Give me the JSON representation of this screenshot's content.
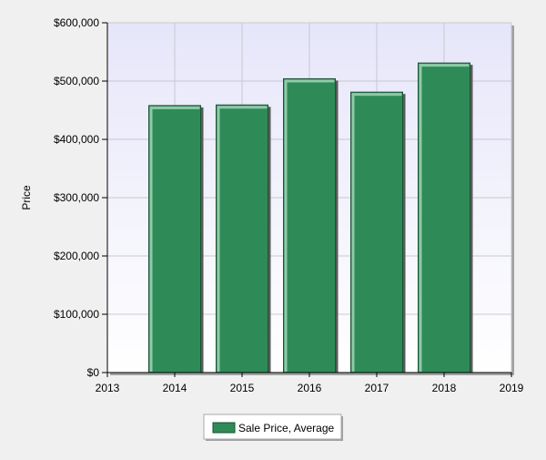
{
  "chart_data": {
    "type": "bar",
    "categories": [
      "2014",
      "2015",
      "2016",
      "2017",
      "2018"
    ],
    "series": [
      {
        "name": "Sale Price, Average",
        "values": [
          458000,
          459000,
          504000,
          481000,
          531000
        ]
      }
    ],
    "x_ticks": [
      "2013",
      "2014",
      "2015",
      "2016",
      "2017",
      "2018",
      "2019"
    ],
    "y_ticks": [
      "$0",
      "$100,000",
      "$200,000",
      "$300,000",
      "$400,000",
      "$500,000",
      "$600,000"
    ],
    "ylabel": "Price",
    "ylim": [
      0,
      600000
    ],
    "grid": true,
    "legend_position": "bottom-center",
    "colors": {
      "bar": "#2e8b57",
      "bar_highlight": "#8fc9a8",
      "bar_shadow": "#1a5233",
      "plot_bg_top": "#e6e6fa",
      "plot_bg_bottom": "#ffffff",
      "grid": "#c8c8d0",
      "page_bg": "#f0f0f0"
    }
  }
}
